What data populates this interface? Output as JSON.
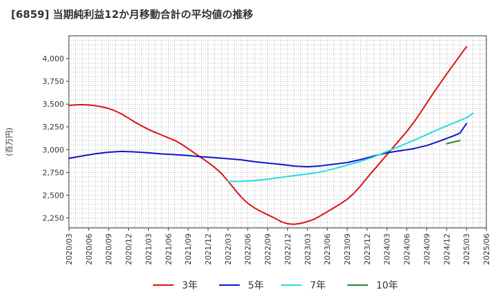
{
  "chart_data": {
    "type": "line",
    "title": "[6859]  当期純利益12か月移動合計の平均値の推移",
    "ylabel": "(百万円)",
    "xlabel": "",
    "ylim": [
      2140,
      4250
    ],
    "yticks": [
      2250,
      2500,
      2750,
      3000,
      3250,
      3500,
      3750,
      4000
    ],
    "ytick_labels": [
      "2,250",
      "2,500",
      "2,750",
      "3,000",
      "3,250",
      "3,500",
      "3,750",
      "4,000"
    ],
    "x_range": [
      "2020-03",
      "2025-06"
    ],
    "xticks": [
      "2020/03",
      "2020/06",
      "2020/09",
      "2020/12",
      "2021/03",
      "2021/06",
      "2021/09",
      "2021/12",
      "2022/03",
      "2022/06",
      "2022/09",
      "2022/12",
      "2023/03",
      "2023/06",
      "2023/09",
      "2023/12",
      "2024/03",
      "2024/06",
      "2024/09",
      "2024/12",
      "2025/03",
      "2025/06"
    ],
    "grid": true,
    "legend_position": "bottom",
    "series": [
      {
        "name": "3年",
        "color": "#dd1111",
        "points": [
          [
            "2020-03",
            3485
          ],
          [
            "2020-04",
            3492
          ],
          [
            "2020-05",
            3494
          ],
          [
            "2020-06",
            3490
          ],
          [
            "2020-07",
            3482
          ],
          [
            "2020-08",
            3470
          ],
          [
            "2020-09",
            3452
          ],
          [
            "2020-10",
            3425
          ],
          [
            "2020-11",
            3390
          ],
          [
            "2020-12",
            3345
          ],
          [
            "2021-01",
            3300
          ],
          [
            "2021-02",
            3260
          ],
          [
            "2021-03",
            3222
          ],
          [
            "2021-04",
            3190
          ],
          [
            "2021-05",
            3160
          ],
          [
            "2021-06",
            3130
          ],
          [
            "2021-07",
            3100
          ],
          [
            "2021-08",
            3060
          ],
          [
            "2021-09",
            3010
          ],
          [
            "2021-10",
            2960
          ],
          [
            "2021-11",
            2910
          ],
          [
            "2021-12",
            2860
          ],
          [
            "2022-01",
            2805
          ],
          [
            "2022-02",
            2740
          ],
          [
            "2022-03",
            2655
          ],
          [
            "2022-04",
            2565
          ],
          [
            "2022-05",
            2480
          ],
          [
            "2022-06",
            2410
          ],
          [
            "2022-07",
            2360
          ],
          [
            "2022-08",
            2320
          ],
          [
            "2022-09",
            2285
          ],
          [
            "2022-10",
            2250
          ],
          [
            "2022-11",
            2210
          ],
          [
            "2022-12",
            2185
          ],
          [
            "2023-01",
            2180
          ],
          [
            "2023-02",
            2190
          ],
          [
            "2023-03",
            2210
          ],
          [
            "2023-04",
            2235
          ],
          [
            "2023-05",
            2275
          ],
          [
            "2023-06",
            2318
          ],
          [
            "2023-07",
            2362
          ],
          [
            "2023-08",
            2405
          ],
          [
            "2023-09",
            2455
          ],
          [
            "2023-10",
            2520
          ],
          [
            "2023-11",
            2600
          ],
          [
            "2023-12",
            2690
          ],
          [
            "2024-01",
            2775
          ],
          [
            "2024-02",
            2860
          ],
          [
            "2024-03",
            2945
          ],
          [
            "2024-04",
            3030
          ],
          [
            "2024-05",
            3115
          ],
          [
            "2024-06",
            3200
          ],
          [
            "2024-07",
            3295
          ],
          [
            "2024-08",
            3400
          ],
          [
            "2024-09",
            3510
          ],
          [
            "2024-10",
            3620
          ],
          [
            "2024-11",
            3725
          ],
          [
            "2024-12",
            3830
          ],
          [
            "2025-01",
            3930
          ],
          [
            "2025-02",
            4030
          ],
          [
            "2025-03",
            4130
          ]
        ]
      },
      {
        "name": "5年",
        "color": "#1111cc",
        "points": [
          [
            "2020-03",
            2905
          ],
          [
            "2020-05",
            2930
          ],
          [
            "2020-07",
            2955
          ],
          [
            "2020-09",
            2972
          ],
          [
            "2020-11",
            2980
          ],
          [
            "2021-01",
            2975
          ],
          [
            "2021-03",
            2965
          ],
          [
            "2021-05",
            2953
          ],
          [
            "2021-07",
            2945
          ],
          [
            "2021-09",
            2935
          ],
          [
            "2021-11",
            2922
          ],
          [
            "2022-01",
            2912
          ],
          [
            "2022-03",
            2900
          ],
          [
            "2022-05",
            2888
          ],
          [
            "2022-07",
            2868
          ],
          [
            "2022-09",
            2852
          ],
          [
            "2022-11",
            2838
          ],
          [
            "2023-01",
            2820
          ],
          [
            "2023-03",
            2812
          ],
          [
            "2023-05",
            2822
          ],
          [
            "2023-07",
            2840
          ],
          [
            "2023-09",
            2858
          ],
          [
            "2023-11",
            2890
          ],
          [
            "2024-01",
            2930
          ],
          [
            "2024-03",
            2965
          ],
          [
            "2024-05",
            2988
          ],
          [
            "2024-07",
            3010
          ],
          [
            "2024-09",
            3045
          ],
          [
            "2024-11",
            3095
          ],
          [
            "2025-01",
            3150
          ],
          [
            "2025-02",
            3180
          ],
          [
            "2025-03",
            3285
          ]
        ]
      },
      {
        "name": "7年",
        "color": "#22dddd",
        "points": [
          [
            "2022-03",
            2650
          ],
          [
            "2022-05",
            2652
          ],
          [
            "2022-07",
            2660
          ],
          [
            "2022-09",
            2675
          ],
          [
            "2022-11",
            2695
          ],
          [
            "2023-01",
            2715
          ],
          [
            "2023-03",
            2732
          ],
          [
            "2023-05",
            2755
          ],
          [
            "2023-07",
            2790
          ],
          [
            "2023-09",
            2830
          ],
          [
            "2023-11",
            2870
          ],
          [
            "2024-01",
            2920
          ],
          [
            "2024-03",
            2980
          ],
          [
            "2024-05",
            3040
          ],
          [
            "2024-07",
            3100
          ],
          [
            "2024-09",
            3165
          ],
          [
            "2024-11",
            3230
          ],
          [
            "2025-01",
            3290
          ],
          [
            "2025-03",
            3350
          ],
          [
            "2025-04",
            3400
          ]
        ]
      },
      {
        "name": "10年",
        "color": "#228822",
        "points": [
          [
            "2024-12",
            3065
          ],
          [
            "2025-02",
            3100
          ]
        ]
      }
    ]
  }
}
